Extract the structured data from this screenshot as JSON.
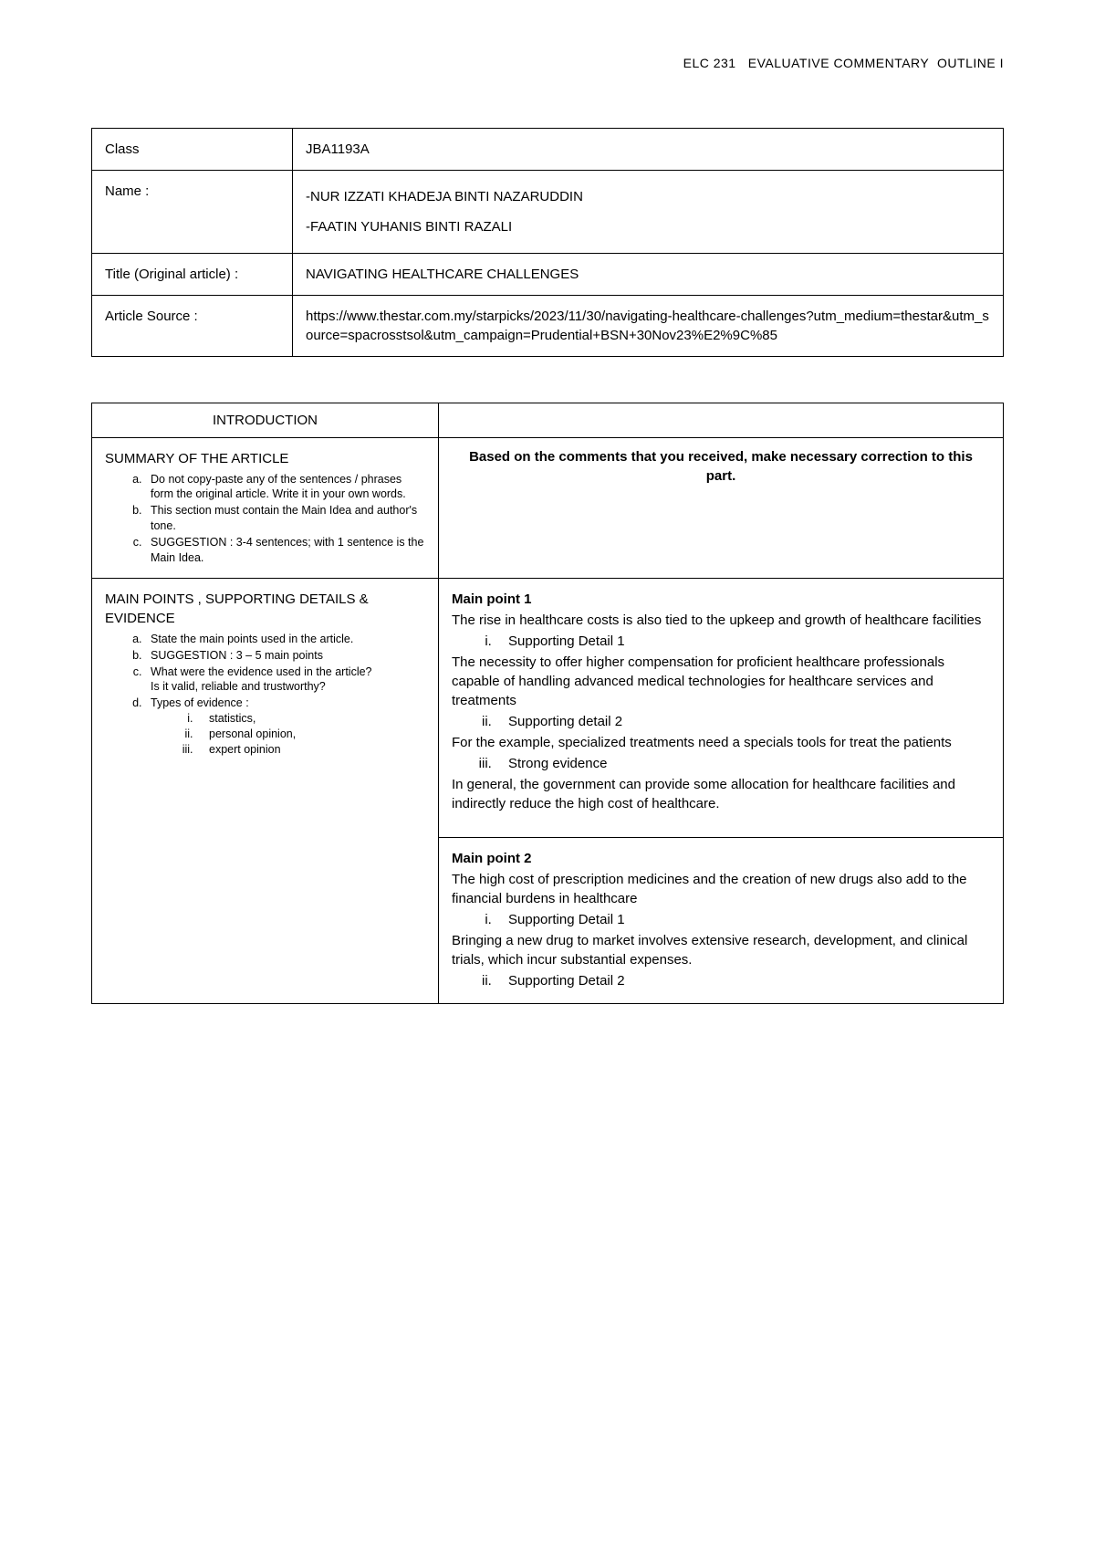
{
  "header": "ELC 231   EVALUATIVE COMMENTARY  OUTLINE I",
  "meta": {
    "class_label": "Class",
    "class_value": "JBA1193A",
    "name_label": "Name  :",
    "name1": "-NUR IZZATI KHADEJA BINTI NAZARUDDIN",
    "name2": "-FAATIN YUHANIS BINTI RAZALI",
    "title_label": "Title (Original article) :",
    "title_value": "NAVIGATING HEALTHCARE CHALLENGES",
    "source_label": "Article Source :",
    "source_value": "https://www.thestar.com.my/starpicks/2023/11/30/navigating-healthcare-challenges?utm_medium=thestar&utm_source=spacrosstsol&utm_campaign=Prudential+BSN+30Nov23%E2%9C%85"
  },
  "intro": {
    "header": "INTRODUCTION",
    "summary_title": "SUMMARY OF THE ARTICLE",
    "summary_items": [
      "Do not copy-paste any of the sentences / phrases form the original article. Write it in your own words.",
      "This section must contain the Main Idea and author's tone.",
      "SUGGESTION : 3-4 sentences; with 1 sentence is the Main Idea."
    ],
    "right_note": "Based on the comments that you received, make necessary correction to this part."
  },
  "mainpoints": {
    "title": "MAIN POINTS , SUPPORTING DETAILS & EVIDENCE",
    "left_items": [
      "State the main points used in the article.",
      "SUGGESTION : 3 – 5 main points",
      "What were the evidence used in the article?",
      "Types of evidence :"
    ],
    "validity_note": "Is it valid, reliable and trustworthy?",
    "evidence_types": [
      "statistics,",
      "personal opinion,",
      "expert opinion"
    ],
    "mp1": {
      "title": "Main point 1",
      "text": "The rise in healthcare costs is also tied to the upkeep and growth of healthcare facilities",
      "sd1_label": "Supporting Detail 1",
      "sd1_text": "The necessity to offer higher compensation for proficient healthcare professionals capable of handling advanced medical technologies for healthcare services and treatments",
      "sd2_label": "Supporting detail 2",
      "sd2_text": "For the example, specialized treatments need a specials tools for treat the patients",
      "se_label": "Strong evidence",
      "se_text": "In general, the government can provide some allocation for healthcare facilities and indirectly reduce the high cost of healthcare."
    },
    "mp2": {
      "title": "Main point 2",
      "text": "The high cost of prescription medicines and the creation of new drugs also add to the financial burdens in healthcare",
      "sd1_label": "Supporting Detail 1",
      "sd1_text": "Bringing a new drug to market involves extensive research, development, and clinical trials, which incur substantial expenses.",
      "sd2_label": "Supporting Detail 2"
    }
  }
}
